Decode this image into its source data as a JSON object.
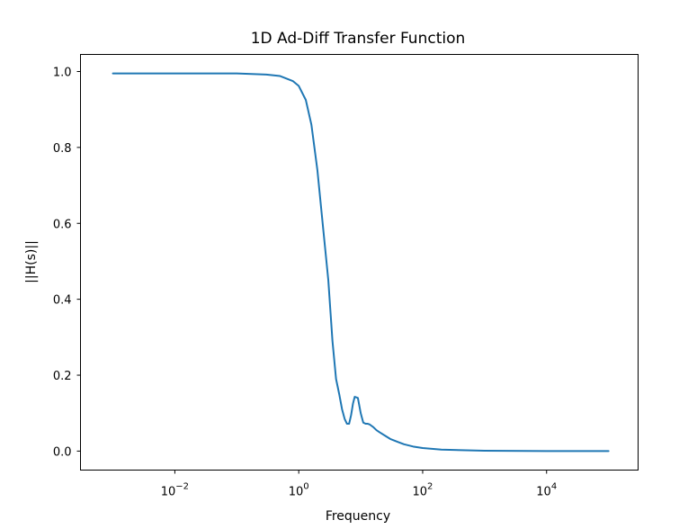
{
  "chart_data": {
    "type": "line",
    "title": "1D Ad-Diff Transfer Function",
    "xlabel": "Frequency",
    "ylabel": "||H(s)||",
    "xscale": "log",
    "xlim": [
      0.0003,
      300000
    ],
    "ylim": [
      -0.05,
      1.045
    ],
    "xticks": [
      {
        "value": 0.01,
        "base": "10",
        "exp": "−2"
      },
      {
        "value": 1,
        "base": "10",
        "exp": "0"
      },
      {
        "value": 100,
        "base": "10",
        "exp": "2"
      },
      {
        "value": 10000,
        "base": "10",
        "exp": "4"
      }
    ],
    "yticks": [
      {
        "value": 0.0,
        "label": "0.0"
      },
      {
        "value": 0.2,
        "label": "0.2"
      },
      {
        "value": 0.4,
        "label": "0.4"
      },
      {
        "value": 0.6,
        "label": "0.6"
      },
      {
        "value": 0.8,
        "label": "0.8"
      },
      {
        "value": 1.0,
        "label": "1.0"
      }
    ],
    "grid": false,
    "series": [
      {
        "color": "#1f77b4",
        "x": [
          0.001,
          0.01,
          0.1,
          0.3,
          0.5,
          0.8,
          1.0,
          1.3,
          1.6,
          2.0,
          2.5,
          3.0,
          3.5,
          4.0,
          4.5,
          5.0,
          5.5,
          6.0,
          6.5,
          7.0,
          7.5,
          8.0,
          9.0,
          10.0,
          11.0,
          12.0,
          13.0,
          14.0,
          16.0,
          18.0,
          20.0,
          25.0,
          30.0,
          40.0,
          50.0,
          70.0,
          100.0,
          200.0,
          500.0,
          1000.0,
          10000.0,
          100000.0
        ],
        "y": [
          0.995,
          0.995,
          0.995,
          0.992,
          0.988,
          0.975,
          0.962,
          0.925,
          0.86,
          0.74,
          0.58,
          0.45,
          0.29,
          0.19,
          0.15,
          0.11,
          0.085,
          0.072,
          0.072,
          0.095,
          0.125,
          0.143,
          0.14,
          0.1,
          0.075,
          0.072,
          0.072,
          0.07,
          0.063,
          0.055,
          0.05,
          0.04,
          0.032,
          0.024,
          0.018,
          0.012,
          0.008,
          0.004,
          0.002,
          0.001,
          0.0,
          0.0
        ]
      }
    ]
  }
}
